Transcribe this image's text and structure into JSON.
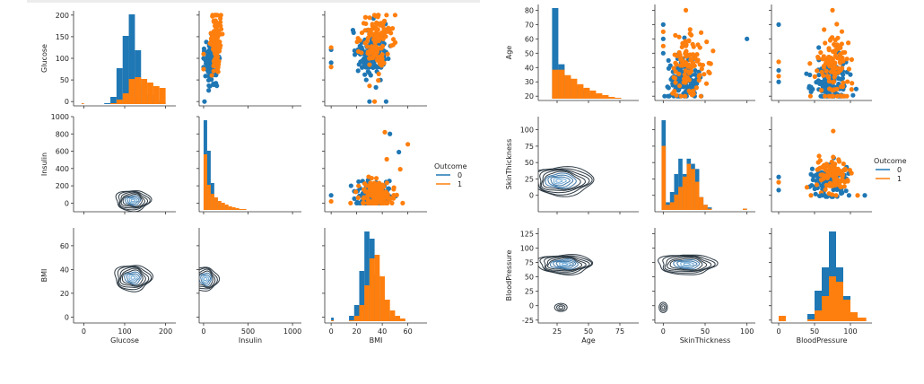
{
  "colors": {
    "outcome0": "#1f77b4",
    "outcome1": "#ff7f0e",
    "contour_dark": "#2d3a44",
    "axis": "#333333"
  },
  "chart_data": [
    {
      "type": "scatter",
      "kind": "pairplot",
      "hue": "Outcome",
      "variables": [
        "Glucose",
        "Insulin",
        "BMI"
      ],
      "legend": {
        "title": "Outcome",
        "entries": [
          "0",
          "1"
        ],
        "placement": "right"
      },
      "diag": "hist",
      "upper": "scatter",
      "lower": "kde",
      "axes": {
        "Glucose": {
          "label": "Glucose",
          "ticks": [
            "0",
            "100",
            "200"
          ],
          "y_ticks": [
            "0",
            "50",
            "100",
            "150",
            "200"
          ]
        },
        "Insulin": {
          "label": "Insulin",
          "ticks": [
            "0",
            "500",
            "1000"
          ],
          "y_ticks": [
            "0",
            "200",
            "400",
            "600",
            "800",
            "1000"
          ]
        },
        "BMI": {
          "label": "BMI",
          "ticks": [
            "0",
            "20",
            "40",
            "60"
          ],
          "y_ticks": [
            "0",
            "20",
            "40",
            "60"
          ]
        }
      }
    },
    {
      "type": "scatter",
      "kind": "pairplot",
      "hue": "Outcome",
      "variables": [
        "Age",
        "SkinThickness",
        "BloodPressure"
      ],
      "legend": {
        "title": "Outcome",
        "entries": [
          "0",
          "1"
        ],
        "placement": "right"
      },
      "diag": "hist",
      "upper": "scatter",
      "lower": "kde",
      "axes": {
        "Age": {
          "label": "Age",
          "ticks": [
            "25",
            "50",
            "75"
          ],
          "y_ticks": [
            "20",
            "30",
            "40",
            "50",
            "60",
            "70",
            "80"
          ]
        },
        "SkinThickness": {
          "label": "SkinThickness",
          "ticks": [
            "0",
            "50",
            "100"
          ],
          "y_ticks": [
            "0",
            "25",
            "50",
            "75",
            "100"
          ]
        },
        "BloodPressure": {
          "label": "BloodPressure",
          "ticks": [
            "0",
            "50",
            "100"
          ],
          "y_ticks": [
            "-25",
            "0",
            "25",
            "50",
            "75",
            "100",
            "125"
          ]
        }
      }
    }
  ]
}
